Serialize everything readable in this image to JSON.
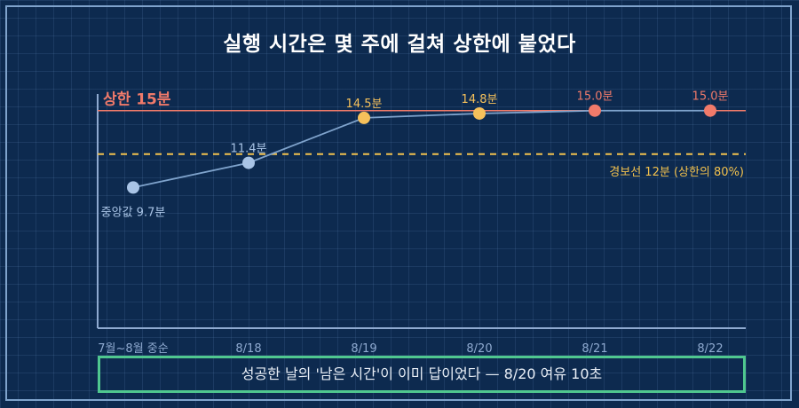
{
  "title": "실행 시간은 몇 주에 걸쳐 상한에 붙었다",
  "footnote": "성공한 날의 '남은 시간'이 이미 답이었다 — 8/20 여유 10초",
  "chart_data": {
    "type": "line",
    "categories": [
      "7월~8월 중순",
      "8/18",
      "8/19",
      "8/20",
      "8/21",
      "8/22"
    ],
    "series": [
      {
        "values": [
          9.7,
          11.4,
          14.5,
          14.8,
          15.0,
          15.0
        ]
      }
    ],
    "point_labels": [
      "중앙값 9.7분",
      "11.4분",
      "14.5분",
      "14.8분",
      "15.0분",
      "15.0분"
    ],
    "point_colors": [
      "#a9c4e6",
      "#a9c4e6",
      "#f6c15b",
      "#f6c15b",
      "#f07a6a",
      "#f07a6a"
    ],
    "ylim": [
      0,
      15.9
    ],
    "reference_lines": [
      {
        "label": "상한 15분",
        "value": 15,
        "color": "#f07a6a",
        "style": "solid"
      },
      {
        "label": "경보선 12분 (상한의 80%)",
        "value": 12,
        "color": "#f2c14e",
        "style": "dashed"
      }
    ],
    "colors": {
      "line": "#7fa3cc",
      "axis": "#8faad0",
      "tick": "#8faad0"
    }
  }
}
